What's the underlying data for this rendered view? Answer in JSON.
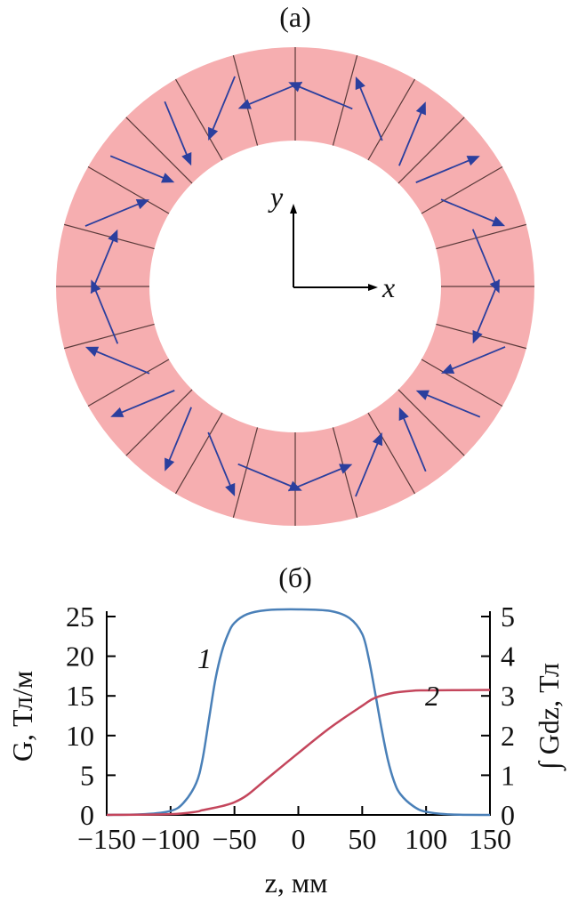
{
  "panel_a": {
    "title": "(а)",
    "segments": 24,
    "axis_x_label": "x",
    "axis_y_label": "y",
    "colors": {
      "magnet": "#f6aeb0",
      "divider": "#5a3a3a",
      "arrow": "#2b3f9e"
    }
  },
  "chart_data": {
    "title": "(б)",
    "type": "line",
    "xlabel": "z, мм",
    "ylabel": "G, Тл/м",
    "ylabel_right": "∫ Gdz, Тл",
    "xlim": [
      -150,
      150
    ],
    "ylim": [
      0,
      25
    ],
    "ylim_right": [
      0,
      5
    ],
    "x_ticks": [
      "−150",
      "−100",
      "−50",
      "0",
      "50",
      "100",
      "150"
    ],
    "y_ticks": [
      "0",
      "5",
      "10",
      "15",
      "20",
      "25"
    ],
    "y_ticks_right": [
      "0",
      "1",
      "2",
      "3",
      "4",
      "5"
    ],
    "grid": false,
    "series": [
      {
        "name": "1",
        "axis": "left",
        "color": "#4a80b8",
        "x": [
          -150,
          -120,
          -100,
          -90,
          -80,
          -75,
          -70,
          -65,
          -60,
          -55,
          -50,
          -40,
          -25,
          0,
          25,
          40,
          50,
          55,
          60,
          65,
          70,
          75,
          80,
          90,
          100,
          120,
          150
        ],
        "y": [
          0,
          0.1,
          0.5,
          1.5,
          4,
          7,
          12,
          17,
          20.5,
          22.8,
          24.2,
          25.3,
          25.8,
          25.9,
          25.7,
          24.8,
          22.8,
          19.8,
          15.5,
          11,
          7,
          4.2,
          2.6,
          1.1,
          0.4,
          0.05,
          0
        ]
      },
      {
        "name": "2",
        "axis": "right",
        "color": "#c4465c",
        "x": [
          -150,
          -100,
          -80,
          -75,
          -60,
          -50,
          -40,
          -25,
          0,
          25,
          50,
          60,
          75,
          90,
          100,
          150
        ],
        "y": [
          0,
          0.02,
          0.08,
          0.12,
          0.22,
          0.32,
          0.5,
          0.9,
          1.56,
          2.2,
          2.75,
          2.95,
          3.08,
          3.13,
          3.14,
          3.15
        ]
      }
    ]
  }
}
